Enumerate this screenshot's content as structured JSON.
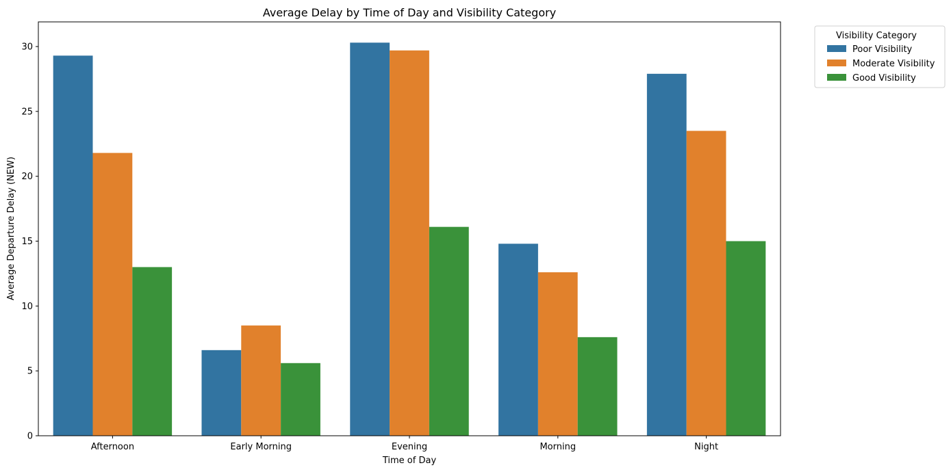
{
  "chart_data": {
    "type": "bar",
    "title": "Average Delay by Time of Day and Visibility Category",
    "xlabel": "Time of Day",
    "ylabel": "Average Departure Delay (NEW)",
    "categories": [
      "Afternoon",
      "Early Morning",
      "Evening",
      "Morning",
      "Night"
    ],
    "series": [
      {
        "name": "Poor Visibility",
        "color": "#3274a1",
        "values": [
          29.3,
          6.6,
          30.3,
          14.8,
          27.9
        ]
      },
      {
        "name": "Moderate Visibility",
        "color": "#e1812c",
        "values": [
          21.8,
          8.5,
          29.7,
          12.6,
          23.5
        ]
      },
      {
        "name": "Good Visibility",
        "color": "#3a923a",
        "values": [
          13.0,
          5.6,
          16.1,
          7.6,
          15.0
        ]
      }
    ],
    "ylim": [
      0,
      31.9
    ],
    "yticks": [
      0,
      5,
      10,
      15,
      20,
      25,
      30
    ],
    "grid": false,
    "legend": {
      "title": "Visibility Category",
      "placement": "outside-top-right"
    }
  }
}
